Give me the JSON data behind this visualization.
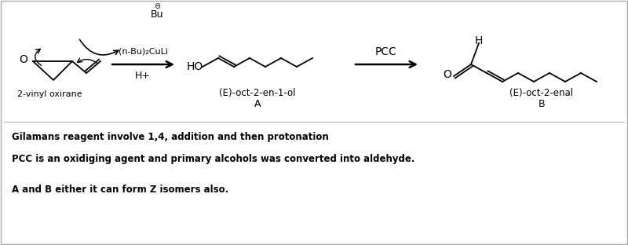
{
  "background_color": "#ffffff",
  "border_color": "#aaaaaa",
  "text_color": "#000000",
  "line1_bold": "Gilamans reagent involve 1,4, addition and then protonation",
  "line2_bold": "PCC is an oxidiging agent and primary alcohols was converted into aldehyde.",
  "line3_bold": "A and B either it can form Z isomers also.",
  "label_2vinyl": "2-vinyl oxirane",
  "label_reagent1": "(n-Bu)₂CuLi",
  "label_reagent2": "H+",
  "label_A_name": "(E)-oct-2-en-1-ol",
  "label_A": "A",
  "label_PCC": "PCC",
  "label_B_name": "(E)-oct-2-enal",
  "label_B": "B",
  "label_Bu": "Bu",
  "label_minus": "⊖"
}
